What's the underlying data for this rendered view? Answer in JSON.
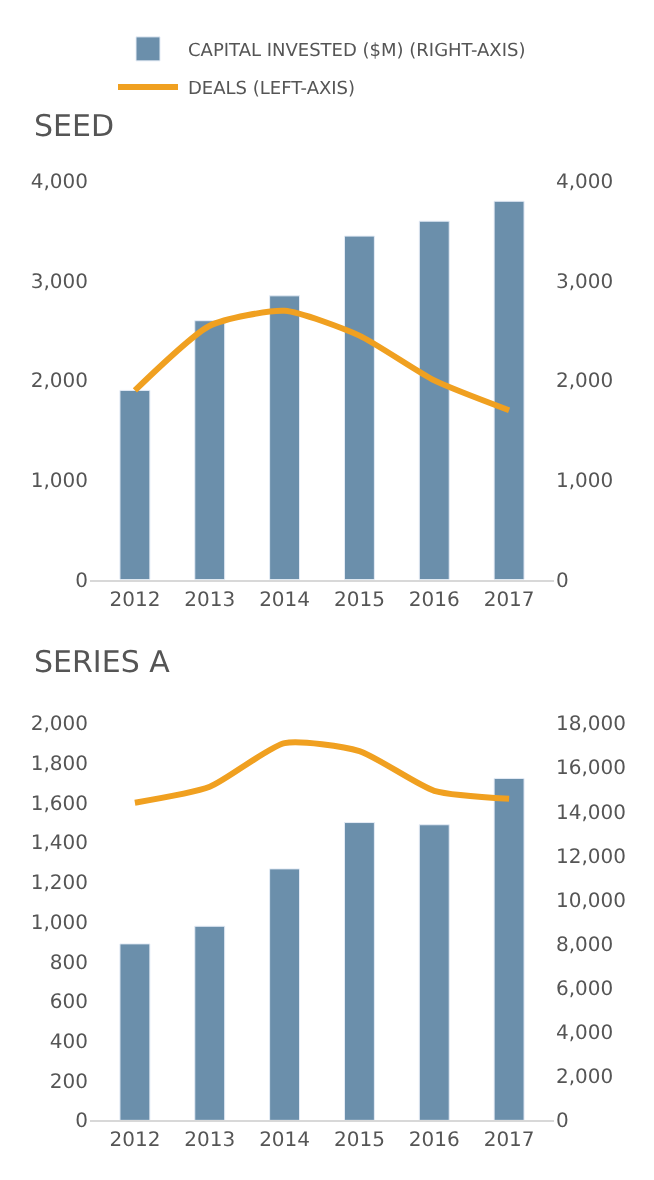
{
  "chart_data": [
    {
      "type": "bar",
      "title": "SEED",
      "categories": [
        "2012",
        "2013",
        "2014",
        "2015",
        "2016",
        "2017"
      ],
      "legend": "top",
      "grid": false,
      "ylim": [
        0,
        4000
      ],
      "yticks": [
        0,
        {
          "value": 1000,
          "label": "1,000"
        },
        {
          "value": 2000,
          "label": "2,000"
        },
        {
          "value": 3000,
          "label": "3,000"
        },
        {
          "value": 4000,
          "label": "4,000"
        }
      ],
      "y2lim": [
        0,
        4000
      ],
      "y2ticks": [
        0,
        {
          "value": 1000,
          "label": "1,000"
        },
        {
          "value": 2000,
          "label": "2,000"
        },
        {
          "value": 3000,
          "label": "3,000"
        },
        {
          "value": 4000,
          "label": "4,000"
        }
      ],
      "series": [
        {
          "name": "CAPITAL INVESTED ($M) (RIGHT-AXIS)",
          "axis": "y2",
          "color": "#6b8fab",
          "values": [
            1900,
            2600,
            2850,
            3450,
            3600,
            3800
          ]
        },
        {
          "name": "DEALS (LEFT-AXIS)",
          "type": "line",
          "color": "#f0a020",
          "values": [
            1900,
            2550,
            2700,
            2450,
            2000,
            1700
          ]
        }
      ]
    },
    {
      "type": "bar",
      "title": "SERIES A",
      "categories": [
        "2012",
        "2013",
        "2014",
        "2015",
        "2016",
        "2017"
      ],
      "grid": false,
      "ylim": [
        0,
        2000
      ],
      "yticks": [
        0,
        200,
        400,
        600,
        800,
        {
          "value": 1000,
          "label": "1,000"
        },
        {
          "value": 1200,
          "label": "1,200"
        },
        {
          "value": 1400,
          "label": "1,400"
        },
        {
          "value": 1600,
          "label": "1,600"
        },
        {
          "value": 1800,
          "label": "1,800"
        },
        {
          "value": 2000,
          "label": "2,000"
        }
      ],
      "y2lim": [
        0,
        18000
      ],
      "y2ticks": [
        0,
        {
          "value": 2000,
          "label": "2,000"
        },
        {
          "value": 4000,
          "label": "4,000"
        },
        {
          "value": 6000,
          "label": "6,000"
        },
        {
          "value": 8000,
          "label": "8,000"
        },
        {
          "value": 10000,
          "label": "10,000"
        },
        {
          "value": 12000,
          "label": "12,000"
        },
        {
          "value": 14000,
          "label": "14,000"
        },
        {
          "value": 16000,
          "label": "16,000"
        },
        {
          "value": 18000,
          "label": "18,000"
        }
      ],
      "series": [
        {
          "axis": "y2",
          "color": "#6b8fab",
          "values": [
            8000,
            8800,
            11400,
            13500,
            13400,
            15500
          ]
        },
        {
          "type": "line",
          "color": "#f0a020",
          "values": [
            1600,
            1680,
            1900,
            1860,
            1660,
            1620
          ]
        }
      ]
    }
  ]
}
